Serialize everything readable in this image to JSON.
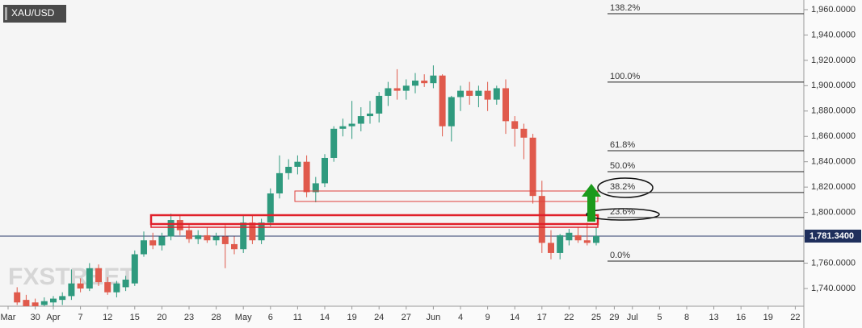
{
  "chart_data": {
    "type": "candlestick",
    "title": "XAU/USD",
    "watermark": "FXSTREET",
    "categories": [
      "Mar",
      null,
      null,
      "30",
      null,
      "Apr",
      null,
      null,
      "7",
      null,
      null,
      "12",
      null,
      null,
      "15",
      null,
      null,
      "20",
      null,
      null,
      "23",
      null,
      null,
      "28",
      null,
      null,
      "May",
      null,
      null,
      "6",
      null,
      null,
      "11",
      null,
      null,
      "14",
      null,
      null,
      "19",
      null,
      null,
      "24",
      null,
      null,
      "27",
      null,
      null,
      "Jun",
      null,
      null,
      "4",
      null,
      null,
      "9",
      null,
      null,
      "14",
      null,
      null,
      "17",
      null,
      null,
      "22",
      null,
      null,
      "25",
      null,
      "29",
      null,
      "Jul",
      null,
      null,
      "5",
      null,
      null,
      "8",
      null,
      null,
      "13",
      null,
      null,
      "16",
      null,
      null,
      "19",
      null,
      null,
      "22",
      null
    ],
    "open": [
      null,
      1737,
      1731,
      1729,
      1727,
      1729,
      1731,
      1734,
      1744,
      1740,
      1756,
      1745,
      1737,
      1741,
      1744,
      1767,
      1778,
      1774,
      1781,
      1794,
      1786,
      1779,
      1782,
      1778,
      1781,
      1775,
      1771,
      1792,
      1778,
      1792,
      1815,
      1831,
      1836,
      1840,
      1816,
      1823,
      1843,
      1866,
      1868,
      1870,
      1876,
      1878,
      1892,
      1898,
      1896,
      1900,
      1904,
      1902,
      1908,
      1868,
      1891,
      1896,
      1892,
      1896,
      1889,
      1898,
      1872,
      1866,
      1859,
      1813,
      1776,
      1768,
      1778,
      1782,
      1778,
      1776,
      null,
      null,
      null,
      null,
      null,
      null,
      null,
      null,
      null,
      null,
      null,
      null,
      null,
      null,
      null,
      null,
      null,
      null,
      null,
      null,
      null,
      null,
      null
    ],
    "high": [
      null,
      1741,
      1735,
      1732,
      1733,
      1734,
      1737,
      1755,
      1748,
      1760,
      1759,
      1749,
      1746,
      1750,
      1770,
      1785,
      1784,
      1784,
      1799,
      1798,
      1791,
      1786,
      1788,
      1784,
      1790,
      1781,
      1798,
      1798,
      1795,
      1819,
      1845,
      1842,
      1845,
      1845,
      1828,
      1846,
      1868,
      1874,
      1888,
      1883,
      1888,
      1895,
      1903,
      1913,
      1905,
      1910,
      1909,
      1916,
      1909,
      1892,
      1900,
      1903,
      1900,
      1903,
      1900,
      1905,
      1876,
      1870,
      1862,
      1825,
      1786,
      1783,
      1787,
      1788,
      1792,
      1788,
      null,
      null,
      null,
      null,
      null,
      null,
      null,
      null,
      null,
      null,
      null,
      null,
      null,
      null,
      null,
      null,
      null,
      null,
      null,
      null,
      null,
      null,
      null
    ],
    "low": [
      null,
      1727,
      1724,
      1722,
      1722,
      1726,
      1727,
      1731,
      1737,
      1738,
      1742,
      1735,
      1733,
      1738,
      1742,
      1765,
      1771,
      1770,
      1778,
      1782,
      1776,
      1775,
      1776,
      1774,
      1756,
      1767,
      1768,
      1775,
      1775,
      1789,
      1811,
      1826,
      1830,
      1812,
      1808,
      1820,
      1840,
      1860,
      1858,
      1864,
      1870,
      1871,
      1884,
      1889,
      1889,
      1894,
      1899,
      1898,
      1860,
      1856,
      1880,
      1885,
      1883,
      1880,
      1885,
      1862,
      1852,
      1842,
      1807,
      1768,
      1763,
      1763,
      1774,
      1776,
      1774,
      1774,
      null,
      null,
      null,
      null,
      null,
      null,
      null,
      null,
      null,
      null,
      null,
      null,
      null,
      null,
      null,
      null,
      null,
      null,
      null,
      null,
      null,
      null,
      null
    ],
    "close": [
      null,
      1729,
      1726,
      1725,
      1730,
      1732,
      1734,
      1744,
      1740,
      1756,
      1745,
      1737,
      1744,
      1747,
      1767,
      1778,
      1774,
      1781,
      1794,
      1786,
      1779,
      1782,
      1778,
      1781,
      1775,
      1771,
      1792,
      1778,
      1792,
      1815,
      1831,
      1836,
      1840,
      1816,
      1823,
      1843,
      1866,
      1868,
      1870,
      1876,
      1878,
      1892,
      1898,
      1896,
      1900,
      1904,
      1902,
      1908,
      1868,
      1891,
      1896,
      1892,
      1896,
      1889,
      1898,
      1872,
      1866,
      1859,
      1813,
      1776,
      1768,
      1782,
      1784,
      1778,
      1776,
      1781.34,
      null,
      null,
      null,
      null,
      null,
      null,
      null,
      null,
      null,
      null,
      null,
      null,
      null,
      null,
      null,
      null,
      null,
      null,
      null,
      null,
      null,
      null,
      null
    ],
    "up_color": "#2f9a7e",
    "down_color": "#e05a4c",
    "ylim": [
      1726,
      1967.6
    ],
    "yticks": [
      {
        "value": 1740,
        "label": "1,740.0000"
      },
      {
        "value": 1760,
        "label": "1,760.0000"
      },
      {
        "value": 1780,
        "label": "1,780.0000"
      },
      {
        "value": 1800,
        "label": "1,800.0000"
      },
      {
        "value": 1820,
        "label": "1,820.0000"
      },
      {
        "value": 1840,
        "label": "1,840.0000"
      },
      {
        "value": 1860,
        "label": "1,860.0000"
      },
      {
        "value": 1880,
        "label": "1,880.0000"
      },
      {
        "value": 1900,
        "label": "1,900.0000"
      },
      {
        "value": 1920,
        "label": "1,920.0000"
      },
      {
        "value": 1940,
        "label": "1,940.0000"
      },
      {
        "value": 1960,
        "label": "1,960.0000"
      }
    ],
    "last_price": {
      "value": 1781.34,
      "label": "1,781.3400"
    },
    "fib_levels": [
      {
        "value": 1956.8,
        "label": "138.2%"
      },
      {
        "value": 1902.8,
        "label": "100.0%"
      },
      {
        "value": 1848.7,
        "label": "61.8%"
      },
      {
        "value": 1832.2,
        "label": "50.0%"
      },
      {
        "value": 1815.7,
        "label": "38.2%"
      },
      {
        "value": 1796,
        "label": "23.6%"
      },
      {
        "value": 1761.6,
        "label": "0.0%"
      }
    ]
  }
}
